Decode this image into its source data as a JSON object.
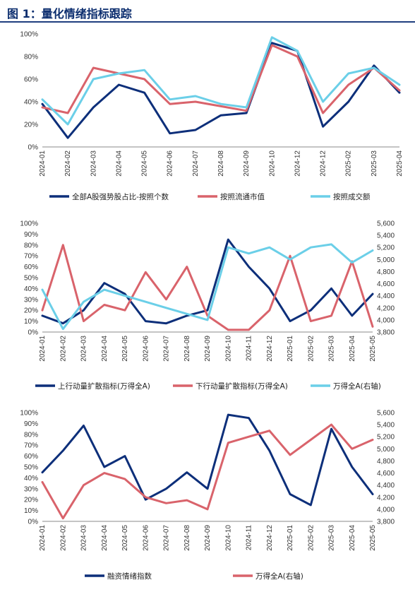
{
  "figure_title": "图 1：量化情绪指标跟踪",
  "colors": {
    "navy": "#0d2f7a",
    "red": "#d9636b",
    "cyan": "#6bcfe8",
    "title": "#0b2d6e"
  },
  "chart_data": [
    {
      "type": "line",
      "x": [
        "2024-01",
        "2024-02",
        "2024-03",
        "2024-04",
        "2024-05",
        "2024-06",
        "2024-07",
        "2024-08",
        "2024-09",
        "2024-10",
        "2024-12",
        "2024-12",
        "2025-02",
        "2025-03",
        "2025-04"
      ],
      "x_tick_labels": [
        "2024-01",
        "2024-02",
        "2024-03",
        "2024-04",
        "2024-05",
        "2024-06",
        "2024-07",
        "2024-08",
        "2024-09",
        "2024-10",
        "2024-12",
        "2024-12",
        "2025-02",
        "2025-03",
        "2025-04"
      ],
      "ylim": [
        0,
        100
      ],
      "y_ticks": [
        "0%",
        "20%",
        "40%",
        "60%",
        "80%",
        "100%"
      ],
      "legend": "bottom",
      "series": [
        {
          "name": "全部A股强势股占比-按照个数",
          "color": "#0d2f7a",
          "values": [
            38,
            8,
            35,
            55,
            48,
            12,
            15,
            28,
            30,
            92,
            85,
            18,
            40,
            72,
            48
          ]
        },
        {
          "name": "按照流通市值",
          "color": "#d9636b",
          "values": [
            35,
            30,
            70,
            65,
            60,
            38,
            40,
            36,
            32,
            90,
            80,
            30,
            55,
            70,
            50
          ]
        },
        {
          "name": "按照成交额",
          "color": "#6bcfe8",
          "values": [
            42,
            20,
            60,
            65,
            68,
            42,
            45,
            38,
            35,
            97,
            85,
            40,
            65,
            70,
            55
          ]
        }
      ]
    },
    {
      "type": "line",
      "x": [
        "2024-01",
        "2024-02",
        "2024-03",
        "2024-04",
        "2024-05",
        "2024-06",
        "2024-07",
        "2024-08",
        "2024-09",
        "2024-10",
        "2024-11",
        "2024-12",
        "2025-01",
        "2025-02",
        "2025-03",
        "2025-04",
        "2025-05"
      ],
      "x_tick_labels": [
        "2024-01",
        "2024-02",
        "2024-03",
        "2024-04",
        "2024-05",
        "2024-06",
        "2024-07",
        "2024-08",
        "2024-09",
        "2024-10",
        "2024-11",
        "2024-12",
        "2025-01",
        "2025-02",
        "2025-03",
        "2025-04",
        "2025-05"
      ],
      "ylim": [
        0,
        100
      ],
      "y_ticks": [
        "0%",
        "10%",
        "20%",
        "30%",
        "40%",
        "50%",
        "60%",
        "70%",
        "80%",
        "90%",
        "100%"
      ],
      "y2lim": [
        3800,
        5600
      ],
      "y2_ticks": [
        "3,800",
        "4,000",
        "4,200",
        "4,400",
        "4,600",
        "4,800",
        "5,000",
        "5,200",
        "5,400",
        "5,600"
      ],
      "legend": "bottom",
      "series": [
        {
          "name": "上行动量扩散指标(万得全A)",
          "color": "#0d2f7a",
          "axis": "left",
          "values": [
            15,
            8,
            20,
            45,
            35,
            10,
            8,
            15,
            20,
            85,
            60,
            40,
            10,
            20,
            40,
            15,
            35
          ]
        },
        {
          "name": "下行动量扩散指标(万得全A)",
          "color": "#d9636b",
          "axis": "left",
          "values": [
            20,
            80,
            10,
            25,
            20,
            55,
            30,
            60,
            15,
            2,
            2,
            20,
            70,
            10,
            15,
            65,
            5
          ]
        },
        {
          "name": "万得全A(右轴)",
          "color": "#6bcfe8",
          "axis": "right",
          "values": [
            4500,
            3850,
            4300,
            4500,
            4400,
            4300,
            4200,
            4100,
            4000,
            5200,
            5100,
            5200,
            5000,
            5200,
            5250,
            4950,
            5150
          ]
        }
      ]
    },
    {
      "type": "line",
      "x": [
        "2024-01",
        "2024-02",
        "2024-03",
        "2024-04",
        "2024-05",
        "2024-06",
        "2024-07",
        "2024-08",
        "2024-09",
        "2024-10",
        "2024-11",
        "2024-12",
        "2025-01",
        "2025-02",
        "2025-03",
        "2025-04",
        "2025-05"
      ],
      "x_tick_labels": [
        "2024-01",
        "2024-02",
        "2024-03",
        "2024-04",
        "2024-05",
        "2024-06",
        "2024-07",
        "2024-08",
        "2024-09",
        "2024-10",
        "2024-11",
        "2024-12",
        "2025-01",
        "2025-02",
        "2025-03",
        "2025-04",
        "2025-05"
      ],
      "ylim": [
        0,
        100
      ],
      "y_ticks": [
        "0%",
        "10%",
        "20%",
        "30%",
        "40%",
        "50%",
        "60%",
        "70%",
        "80%",
        "90%",
        "100%"
      ],
      "y2lim": [
        3800,
        5600
      ],
      "y2_ticks": [
        "3,800",
        "4,000",
        "4,200",
        "4,400",
        "4,600",
        "4,800",
        "5,000",
        "5,200",
        "5,400",
        "5,600"
      ],
      "legend": "bottom",
      "series": [
        {
          "name": "融资情绪指数",
          "color": "#0d2f7a",
          "axis": "left",
          "values": [
            45,
            65,
            88,
            50,
            60,
            20,
            30,
            45,
            30,
            98,
            95,
            65,
            25,
            15,
            85,
            50,
            25
          ]
        },
        {
          "name": "万得全A(右轴)",
          "color": "#d9636b",
          "axis": "right",
          "values": [
            4450,
            3850,
            4400,
            4600,
            4500,
            4200,
            4100,
            4150,
            4000,
            5100,
            5200,
            5300,
            4900,
            5150,
            5400,
            5000,
            5150
          ]
        }
      ]
    }
  ]
}
